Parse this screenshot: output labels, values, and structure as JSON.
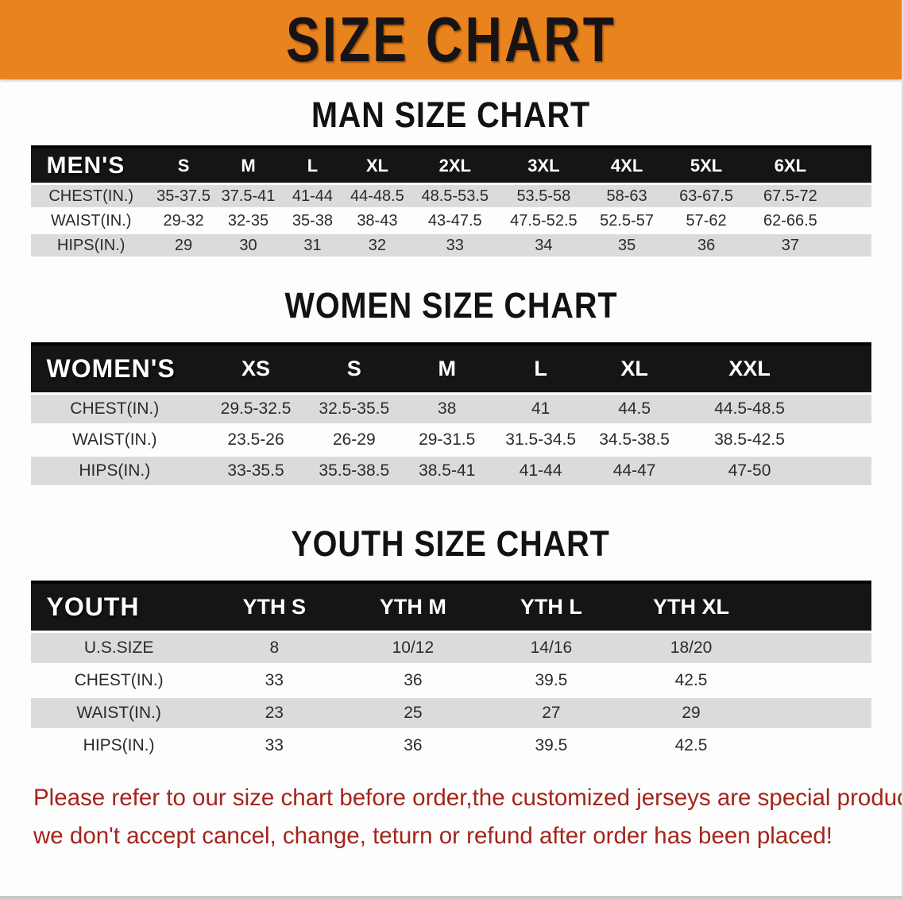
{
  "banner": {
    "title": "SIZE CHART"
  },
  "colors": {
    "banner_bg": "#E8831D",
    "table_header_bg": "#151515",
    "row_gray": "#dbdbdb",
    "notice_red": "#A3251C"
  },
  "sections": [
    {
      "id": "men",
      "title": "MAN SIZE CHART",
      "table": {
        "header_label": "MEN'S",
        "columns": [
          "S",
          "M",
          "L",
          "XL",
          "2XL",
          "3XL",
          "4XL",
          "5XL",
          "6XL"
        ],
        "rows": [
          {
            "label": "CHEST(IN.)",
            "values": [
              "35-37.5",
              "37.5-41",
              "41-44",
              "44-48.5",
              "48.5-53.5",
              "53.5-58",
              "58-63",
              "63-67.5",
              "67.5-72"
            ]
          },
          {
            "label": "WAIST(IN.)",
            "values": [
              "29-32",
              "32-35",
              "35-38",
              "38-43",
              "43-47.5",
              "47.5-52.5",
              "52.5-57",
              "57-62",
              "62-66.5"
            ]
          },
          {
            "label": "HIPS(IN.)",
            "values": [
              "29",
              "30",
              "31",
              "32",
              "33",
              "34",
              "35",
              "36",
              "37"
            ]
          }
        ]
      }
    },
    {
      "id": "women",
      "title": "WOMEN SIZE CHART",
      "table": {
        "header_label": "WOMEN'S",
        "columns": [
          "XS",
          "S",
          "M",
          "L",
          "XL",
          "XXL"
        ],
        "rows": [
          {
            "label": "CHEST(IN.)",
            "values": [
              "29.5-32.5",
              "32.5-35.5",
              "38",
              "41",
              "44.5",
              "44.5-48.5"
            ]
          },
          {
            "label": "WAIST(IN.)",
            "values": [
              "23.5-26",
              "26-29",
              "29-31.5",
              "31.5-34.5",
              "34.5-38.5",
              "38.5-42.5"
            ]
          },
          {
            "label": "HIPS(IN.)",
            "values": [
              "33-35.5",
              "35.5-38.5",
              "38.5-41",
              "41-44",
              "44-47",
              "47-50"
            ]
          }
        ]
      }
    },
    {
      "id": "youth",
      "title": "YOUTH SIZE CHART",
      "table": {
        "header_label": "YOUTH",
        "columns": [
          "YTH S",
          "YTH M",
          "YTH L",
          "YTH XL"
        ],
        "rows": [
          {
            "label": "U.S.SIZE",
            "values": [
              "8",
              "10/12",
              "14/16",
              "18/20"
            ]
          },
          {
            "label": "CHEST(IN.)",
            "values": [
              "33",
              "36",
              "39.5",
              "42.5"
            ]
          },
          {
            "label": "WAIST(IN.)",
            "values": [
              "23",
              "25",
              "27",
              "29"
            ]
          },
          {
            "label": "HIPS(IN.)",
            "values": [
              "33",
              "36",
              "39.5",
              "42.5"
            ]
          }
        ]
      }
    }
  ],
  "footer": {
    "line1": "Please refer to our size chart before order,the customized jerseys are special products,",
    "line2": "we don't accept cancel, change, teturn or refund after order has been placed!"
  }
}
